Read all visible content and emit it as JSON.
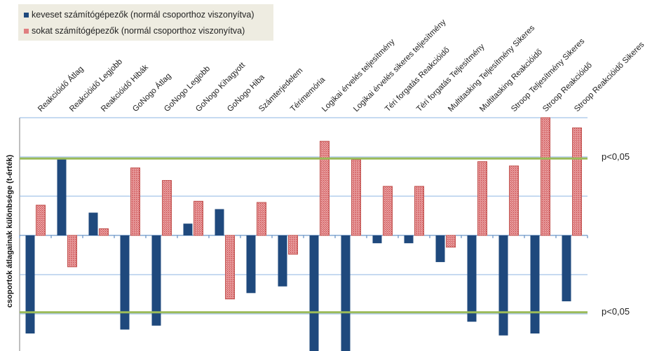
{
  "legend": {
    "series_a": "keveset számítógépezők (normál csoporthoz viszonyítva)",
    "series_b": "sokat számítógépezők (normál csoporthoz viszonyítva)"
  },
  "colors": {
    "series_a": "#1f497d",
    "series_b": "#d9797a",
    "threshold": "#9bbb59",
    "grid": "#8eb4e3"
  },
  "chart_data": {
    "type": "bar",
    "ylabel": "csoportok átlagainak különbsége (t-érték)",
    "y_unit_note": "t-value, threshold lines at p<0,05",
    "ylim": [
      -3.0,
      3.0
    ],
    "threshold_upper": 1.96,
    "threshold_lower": -1.96,
    "threshold_label_upper": "p<0,05",
    "threshold_label_lower": "p<0,05",
    "categories": [
      "Reakcióidő Átlag",
      "Reakcióidő Legjobb",
      "Reakcióidő Hibák",
      "GoNogo Átlag",
      "GoNogo Legjobb",
      "GoNogo Kihagyott",
      "GoNogo Hiba",
      "Számterjedelem",
      "Térimemória",
      "Logikai érvelés teljesítmény",
      "Logikai érvelés sikeres teljesítmény",
      "Téri forgatás Reakcióidő",
      "Téri forgatás Teljesítmény",
      "Multitasking Teljesítmény Sikeres",
      "Multitasking Reakcióidő",
      "Stroop Teljesítmény Sikeres",
      "Stroop Reakcióidő",
      "Stroop Reakcióidő Sikeres"
    ],
    "series": [
      {
        "name": "keveset számítógépezők (normál csoporthoz viszonyítva)",
        "values": [
          -2.5,
          1.96,
          0.58,
          -2.4,
          -2.3,
          0.3,
          0.67,
          -1.47,
          -1.3,
          -3.0,
          -3.0,
          -0.2,
          -0.2,
          -0.68,
          -2.2,
          -2.55,
          -2.5,
          -1.68
        ]
      },
      {
        "name": "sokat számítógépezők (normál csoporthoz viszonyítva)",
        "values": [
          0.77,
          -0.8,
          0.17,
          1.72,
          1.4,
          0.87,
          -1.62,
          0.84,
          -0.48,
          2.4,
          1.93,
          1.25,
          1.25,
          -0.3,
          1.88,
          1.77,
          3.0,
          2.74
        ]
      }
    ]
  }
}
